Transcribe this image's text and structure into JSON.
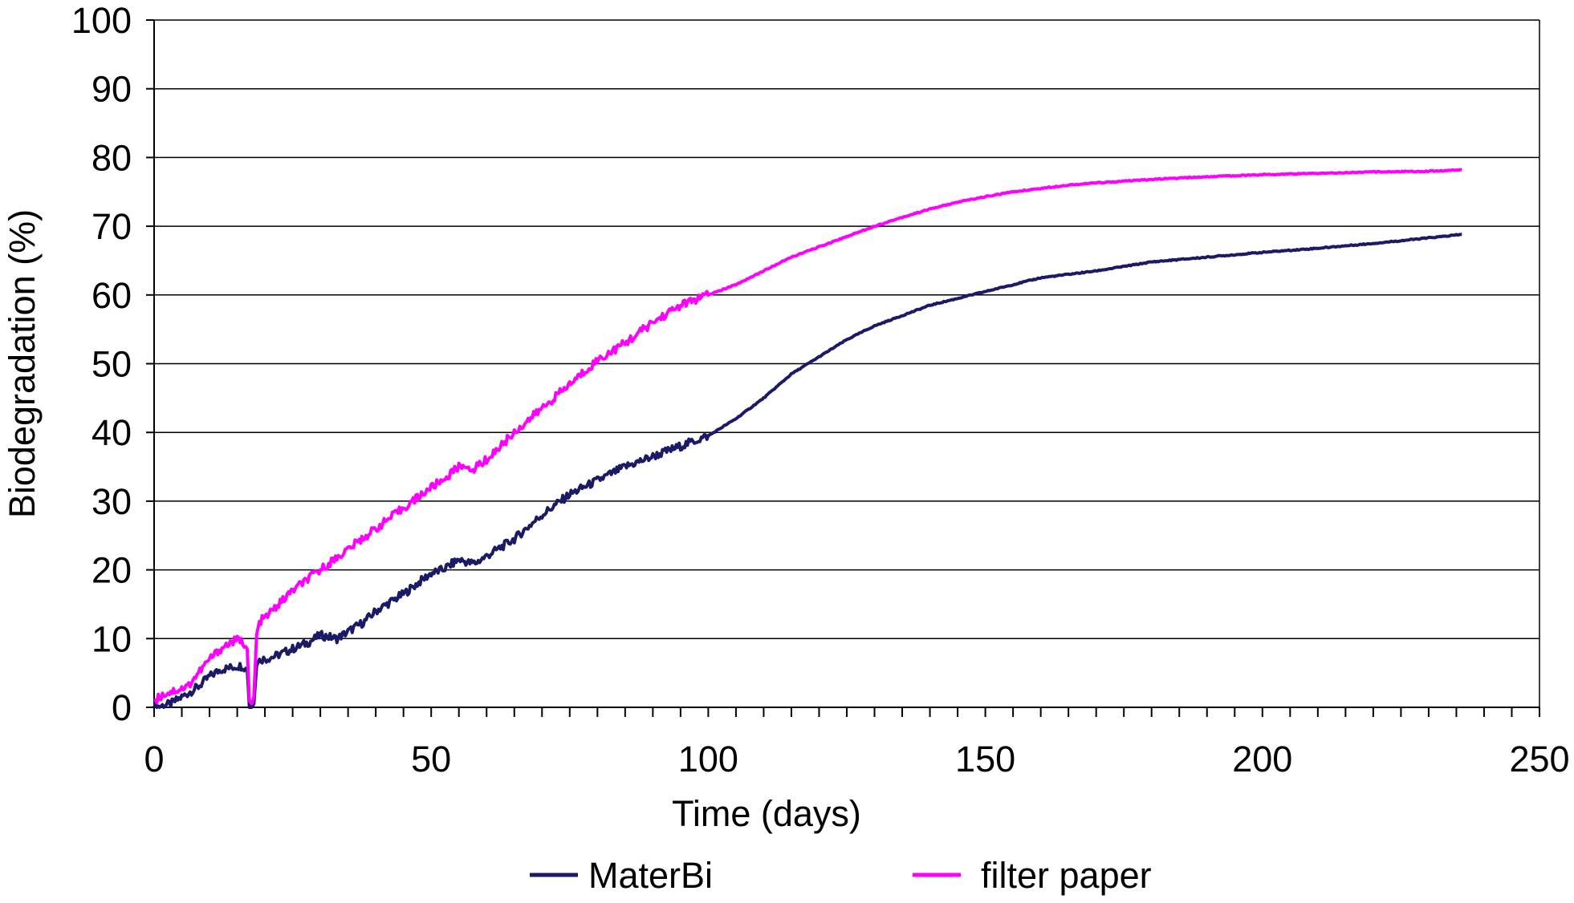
{
  "chart_data": {
    "type": "line",
    "title": "",
    "xlabel": "Time (days)",
    "ylabel": "Biodegradation (%)",
    "xlim": [
      0,
      250
    ],
    "ylim": [
      0,
      100
    ],
    "x_ticks": [
      0,
      50,
      100,
      150,
      200,
      250
    ],
    "y_ticks": [
      0,
      10,
      20,
      30,
      40,
      50,
      60,
      70,
      80,
      90,
      100
    ],
    "grid": "horizontal",
    "legend_position": "bottom",
    "series": [
      {
        "name": "MaterBi",
        "color": "#1a1a66",
        "x": [
          0,
          3,
          5,
          8,
          10,
          12,
          14,
          15,
          16,
          16.8,
          17.2,
          17.6,
          18.0,
          18.5,
          19,
          20,
          22,
          25,
          28,
          30,
          33,
          35,
          38,
          40,
          45,
          50,
          52,
          55,
          57,
          58,
          60,
          65,
          70,
          75,
          80,
          85,
          90,
          95,
          100,
          105,
          110,
          115,
          120,
          125,
          130,
          135,
          140,
          145,
          150,
          155,
          160,
          165,
          170,
          180,
          190,
          200,
          210,
          220,
          230,
          236
        ],
        "y": [
          0,
          0.5,
          1.5,
          3,
          4.5,
          5.5,
          5.8,
          6.0,
          6.0,
          5.5,
          0,
          0,
          0.5,
          6,
          7,
          7,
          7.5,
          8.5,
          9.5,
          10.5,
          10,
          11,
          12.5,
          14,
          16.5,
          19.5,
          20,
          21.5,
          21,
          21,
          22,
          24.5,
          28,
          31,
          33,
          35,
          36.5,
          38,
          39.5,
          42,
          45,
          48.5,
          51,
          53.5,
          55.5,
          57,
          58.5,
          59.5,
          60.5,
          61.5,
          62.5,
          63,
          63.5,
          64.8,
          65.5,
          66.2,
          66.8,
          67.5,
          68.3,
          68.8
        ]
      },
      {
        "name": "filter paper",
        "color": "#ff00ff",
        "x": [
          0,
          2,
          4,
          6,
          8,
          10,
          12,
          14,
          15,
          16,
          16.8,
          17.2,
          17.6,
          18,
          18.5,
          19,
          20,
          25,
          30,
          35,
          40,
          45,
          50,
          52,
          55,
          56,
          57,
          58,
          60,
          65,
          70,
          75,
          80,
          85,
          90,
          95,
          100,
          105,
          110,
          115,
          120,
          125,
          130,
          135,
          140,
          145,
          150,
          155,
          160,
          165,
          170,
          180,
          190,
          200,
          210,
          220,
          230,
          236
        ],
        "y": [
          1,
          2,
          2.5,
          3,
          5,
          7,
          8.5,
          9.5,
          9.8,
          9.5,
          8.5,
          1,
          0.5,
          1.5,
          10.5,
          12.5,
          13,
          17,
          20,
          23,
          26,
          29,
          32,
          33,
          35,
          35.5,
          34,
          35,
          36,
          40,
          43.5,
          47,
          50.5,
          53,
          56,
          58.5,
          60,
          61.5,
          63.5,
          65.5,
          67,
          68.5,
          70,
          71.3,
          72.5,
          73.5,
          74.3,
          75,
          75.5,
          76,
          76.3,
          76.8,
          77.2,
          77.5,
          77.7,
          77.9,
          78,
          78.2
        ]
      }
    ]
  }
}
